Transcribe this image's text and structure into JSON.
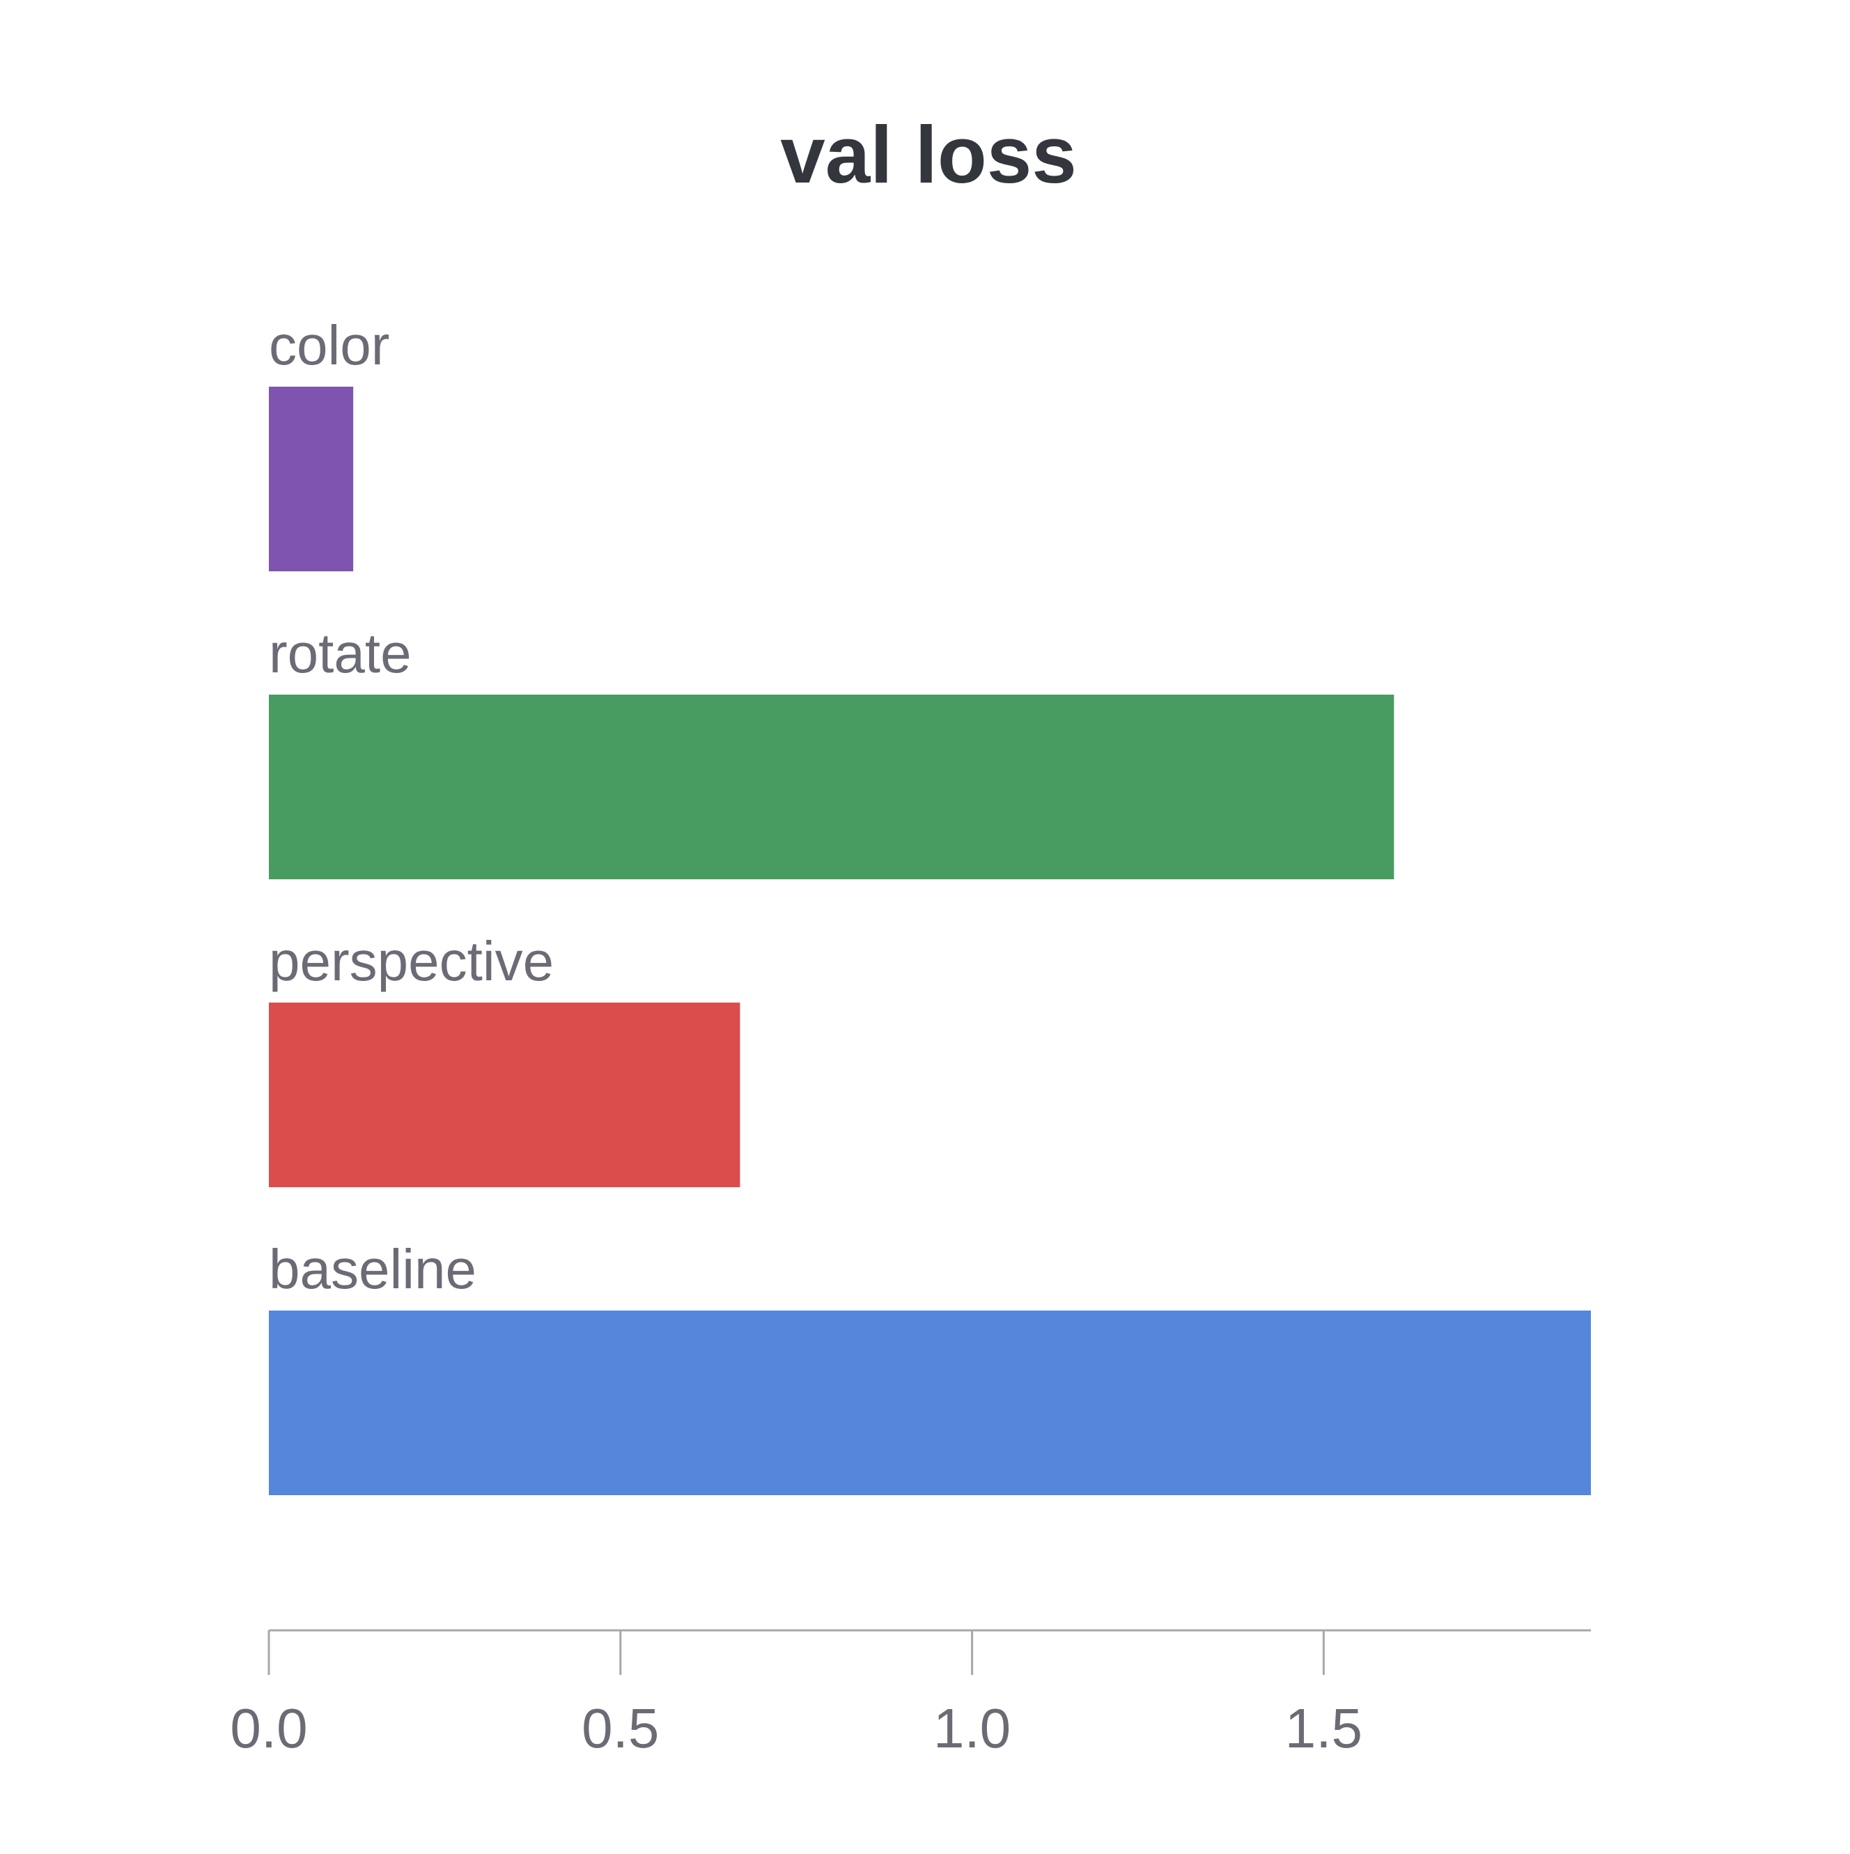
{
  "chart_data": {
    "type": "bar",
    "orientation": "horizontal",
    "title": "val loss",
    "xlabel": "",
    "ylabel": "",
    "categories": [
      "color",
      "rotate",
      "perspective",
      "baseline"
    ],
    "values": [
      0.12,
      1.6,
      0.67,
      1.88
    ],
    "colors": [
      "#7f54b1",
      "#489b61",
      "#db4d4d",
      "#5487dc"
    ],
    "xlim": [
      0,
      1.88
    ],
    "x_ticks": [
      0.0,
      0.5,
      1.0,
      1.5
    ],
    "x_tick_labels": [
      "0.0",
      "0.5",
      "1.0",
      "1.5"
    ],
    "grid": false,
    "legend": "none"
  }
}
